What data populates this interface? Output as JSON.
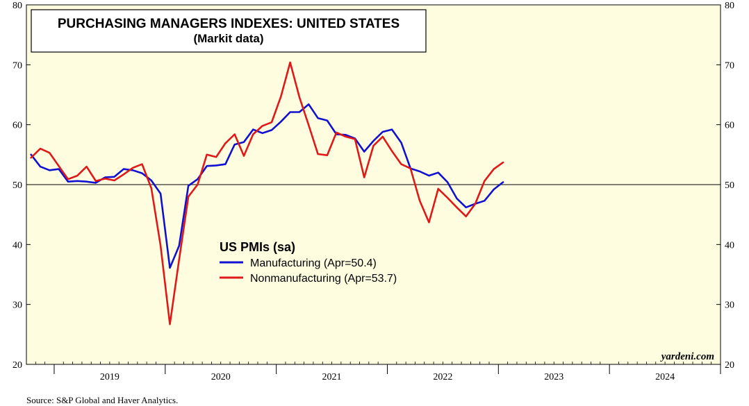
{
  "chart_data": {
    "type": "line",
    "title": "PURCHASING MANAGERS INDEXES: UNITED STATES",
    "subtitle": "(Markit data)",
    "legend_title": "US PMIs (sa)",
    "watermark": "yardeni.com",
    "source": "Source: S&P Global and Haver Analytics.",
    "ylim": [
      20,
      80
    ],
    "yticks": [
      20,
      30,
      40,
      50,
      60,
      70,
      80
    ],
    "reference_line": 50,
    "x_start": "2018-10",
    "x_end": "2024-12",
    "years": [
      "2019",
      "2020",
      "2021",
      "2022",
      "2023",
      "2024"
    ],
    "series": [
      {
        "name": "Manufacturing (Apr=50.4)",
        "color": "#1010d0",
        "start": "2018-10",
        "values": [
          55.0,
          53.0,
          52.4,
          52.6,
          50.5,
          50.6,
          50.5,
          50.3,
          51.2,
          51.3,
          52.6,
          52.4,
          51.9,
          50.7,
          48.5,
          36.1,
          39.8,
          49.8,
          50.9,
          53.1,
          53.2,
          53.4,
          56.7,
          57.1,
          59.2,
          58.6,
          59.1,
          60.5,
          62.1,
          62.1,
          63.4,
          61.1,
          60.7,
          58.4,
          58.3,
          57.7,
          55.5,
          57.3,
          58.8,
          59.2,
          57.0,
          52.7,
          52.2,
          51.5,
          52.0,
          50.4,
          47.7,
          46.2,
          46.8,
          47.3,
          49.2,
          50.4
        ]
      },
      {
        "name": "Nonmanufacturing (Apr=53.7)",
        "color": "#e01818",
        "start": "2018-10",
        "values": [
          54.5,
          56.0,
          55.3,
          53.1,
          50.9,
          51.5,
          53.0,
          50.6,
          51.0,
          50.7,
          51.7,
          52.8,
          53.4,
          49.4,
          39.8,
          26.7,
          37.5,
          48.0,
          50.0,
          55.0,
          54.6,
          56.9,
          58.4,
          54.8,
          58.4,
          59.8,
          60.4,
          64.7,
          70.4,
          64.6,
          59.9,
          55.1,
          54.9,
          58.7,
          58.0,
          57.6,
          51.2,
          56.5,
          58.0,
          55.6,
          53.4,
          52.7,
          47.3,
          43.7,
          49.3,
          47.8,
          46.2,
          44.7,
          46.8,
          50.6,
          52.6,
          53.7
        ]
      }
    ]
  }
}
